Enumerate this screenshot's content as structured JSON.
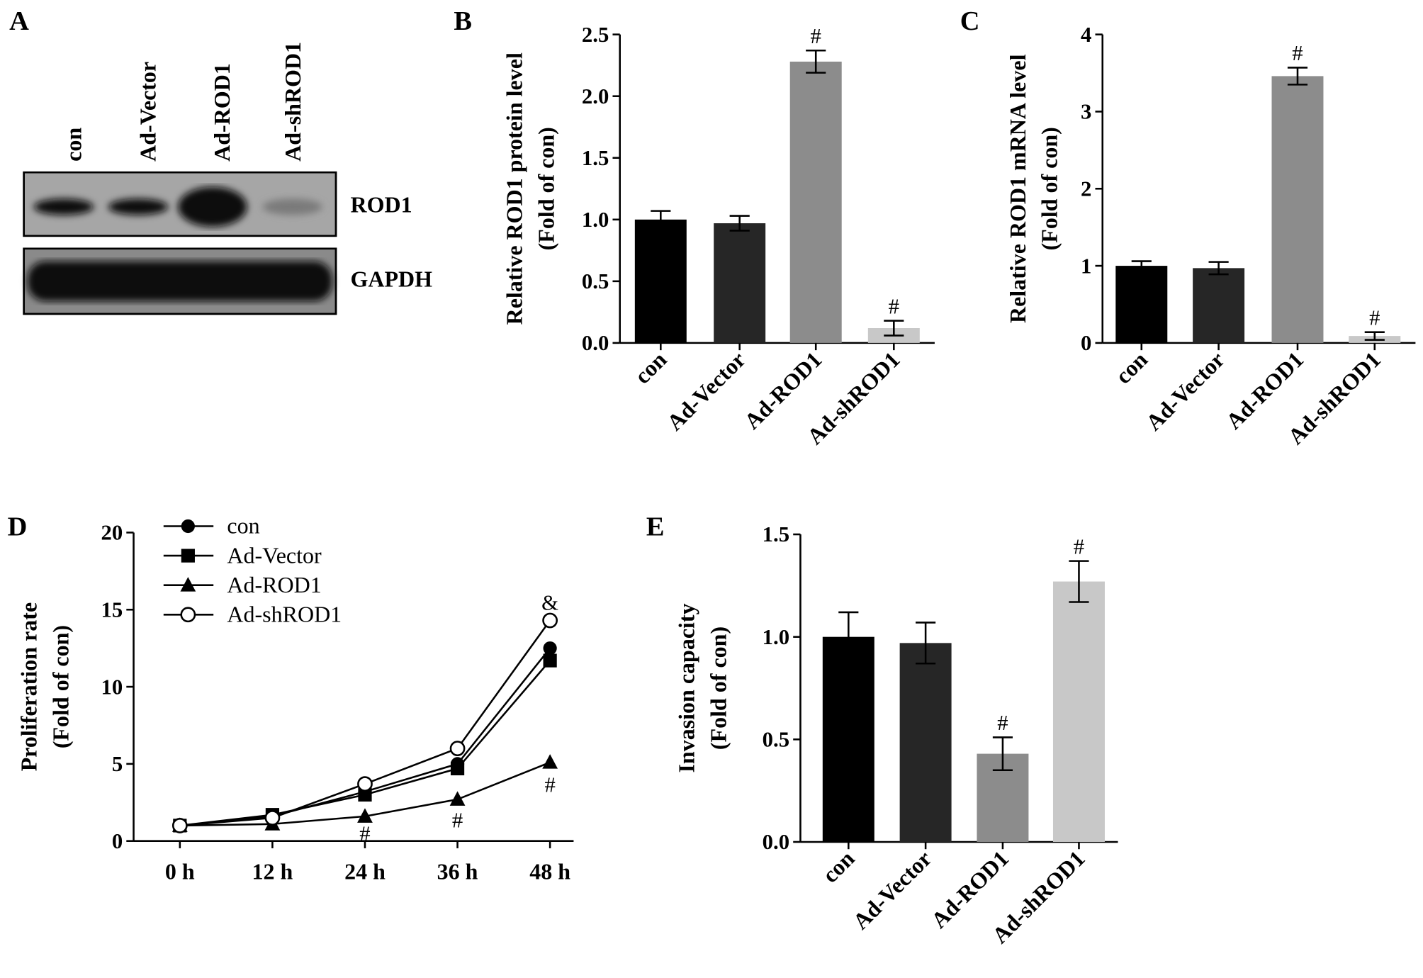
{
  "panel_labels": [
    "A",
    "B",
    "C",
    "D",
    "E"
  ],
  "blot": {
    "lanes": [
      "con",
      "Ad-Vector",
      "Ad-ROD1",
      "Ad-shROD1"
    ],
    "bands": [
      "ROD1",
      "GAPDH"
    ],
    "rod1_intensity": [
      0.8,
      0.75,
      1.0,
      0.2
    ]
  },
  "colors": {
    "con": "#000000",
    "Ad-Vector": "#262626",
    "Ad-ROD1": "#8c8c8c",
    "Ad-shROD1": "#c8c8c8"
  },
  "chart_data": [
    {
      "id": "B",
      "type": "bar",
      "categories": [
        "con",
        "Ad-Vector",
        "Ad-ROD1",
        "Ad-shROD1"
      ],
      "values": [
        1.0,
        0.97,
        2.28,
        0.12
      ],
      "errors": [
        0.07,
        0.06,
        0.09,
        0.06
      ],
      "annotations": [
        "",
        "",
        "#",
        "#"
      ],
      "ylabel": [
        "Relative ROD1 protein level",
        "(Fold of con)"
      ],
      "ylim": [
        0,
        2.5
      ],
      "yticks": [
        "0.0",
        "0.5",
        "1.0",
        "1.5",
        "2.0",
        "2.5"
      ]
    },
    {
      "id": "C",
      "type": "bar",
      "categories": [
        "con",
        "Ad-Vector",
        "Ad-ROD1",
        "Ad-shROD1"
      ],
      "values": [
        1.0,
        0.97,
        3.46,
        0.09
      ],
      "errors": [
        0.06,
        0.08,
        0.11,
        0.05
      ],
      "annotations": [
        "",
        "",
        "#",
        "#"
      ],
      "ylabel": [
        "Relative ROD1 mRNA level",
        "(Fold of con)"
      ],
      "ylim": [
        0,
        4
      ],
      "yticks": [
        "0",
        "1",
        "2",
        "3",
        "4"
      ]
    },
    {
      "id": "D",
      "type": "line",
      "x": [
        "0 h",
        "12 h",
        "24 h",
        "36 h",
        "48 h"
      ],
      "series": [
        {
          "name": "con",
          "marker": "circle-filled",
          "values": [
            1.0,
            1.6,
            3.2,
            5.0,
            12.5
          ]
        },
        {
          "name": "Ad-Vector",
          "marker": "square-filled",
          "values": [
            1.0,
            1.7,
            3.0,
            4.7,
            11.7
          ]
        },
        {
          "name": "Ad-ROD1",
          "marker": "triangle-filled",
          "values": [
            1.0,
            1.1,
            1.6,
            2.7,
            5.1
          ]
        },
        {
          "name": "Ad-shROD1",
          "marker": "circle-open",
          "values": [
            1.0,
            1.5,
            3.7,
            6.0,
            14.3
          ]
        }
      ],
      "annotations": [
        {
          "x": "24 h",
          "text": "#"
        },
        {
          "x": "36 h",
          "text": "#"
        },
        {
          "x": "48 h",
          "text": "#"
        },
        {
          "x": "48 h",
          "text": "&"
        }
      ],
      "ylabel": [
        "Proliferation rate",
        "(Fold of con)"
      ],
      "ylim": [
        0,
        20
      ],
      "yticks": [
        "0",
        "5",
        "10",
        "15",
        "20"
      ],
      "legend": "top-left"
    },
    {
      "id": "E",
      "type": "bar",
      "categories": [
        "con",
        "Ad-Vector",
        "Ad-ROD1",
        "Ad-shROD1"
      ],
      "values": [
        1.0,
        0.97,
        0.43,
        1.27
      ],
      "errors": [
        0.12,
        0.1,
        0.08,
        0.1
      ],
      "annotations": [
        "",
        "",
        "#",
        "#"
      ],
      "ylabel": [
        "Invasion capacity",
        "(Fold of con)"
      ],
      "ylim": [
        0,
        1.5
      ],
      "yticks": [
        "0.0",
        "0.5",
        "1.0",
        "1.5"
      ]
    }
  ]
}
